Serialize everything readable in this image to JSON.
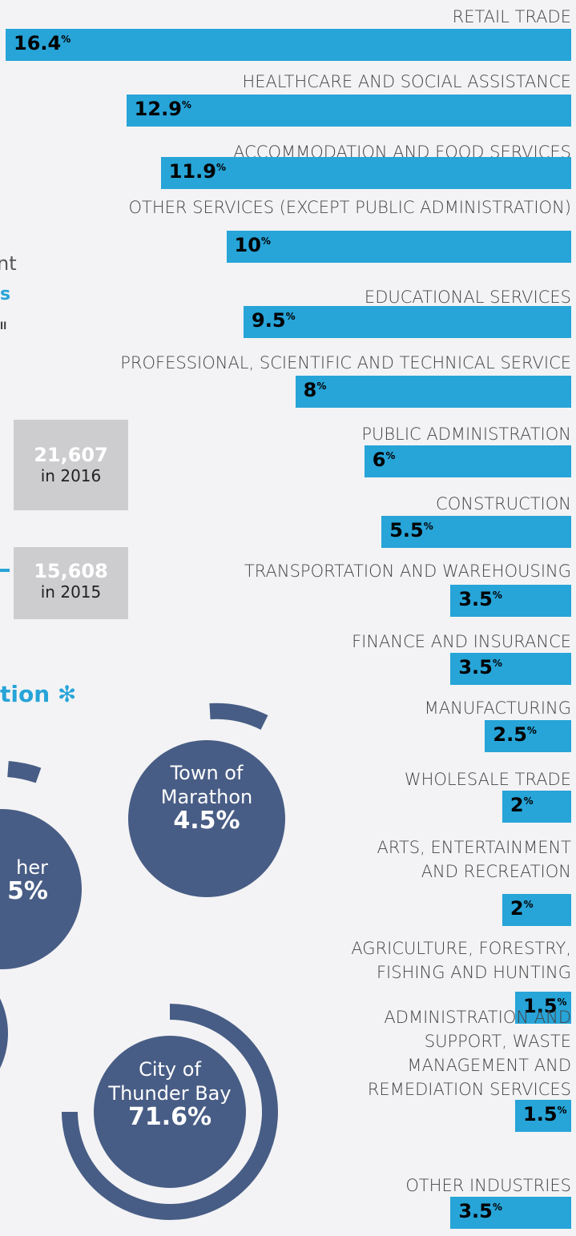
{
  "chart_data": {
    "type": "bar",
    "orientation": "horizontal",
    "color": "#27a4d8",
    "unit": "%",
    "categories": [
      "RETAIL TRADE",
      "HEALTHCARE AND SOCIAL ASSISTANCE",
      "ACCOMMODATION AND FOOD SERVICES",
      "OTHER SERVICES (EXCEPT PUBLIC ADMINISTRATION)",
      "EDUCATIONAL SERVICES",
      "PROFESSIONAL, SCIENTIFIC AND TECHNICAL SERVICE",
      "PUBLIC ADMINISTRATION",
      "CONSTRUCTION",
      "TRANSPORTATION AND WAREHOUSING",
      "FINANCE AND INSURANCE",
      "MANUFACTURING",
      "WHOLESALE TRADE",
      "ARTS, ENTERTAINMENT\nAND RECREATION",
      "AGRICULTURE, FORESTRY,\nFISHING AND HUNTING",
      "ADMINISTRATION AND\nSUPPORT, WASTE\nMANAGEMENT AND\nREMEDIATION SERVICES",
      "OTHER INDUSTRIES"
    ],
    "values": [
      16.4,
      12.9,
      11.9,
      10,
      9.5,
      8,
      6,
      5.5,
      3.5,
      3.5,
      2.5,
      2,
      2,
      1.5,
      1.5,
      3.5
    ]
  },
  "fragments": {
    "text_a": "nt",
    "text_b": "s",
    "text_c": "ll",
    "heading": "tion ✻"
  },
  "stats": [
    {
      "value": "21,607",
      "label": "in 2016"
    },
    {
      "value": "15,608",
      "label": "in 2015"
    }
  ],
  "circles": [
    {
      "name": "Town of\nMarathon",
      "value": "4.5%"
    },
    {
      "name": "her",
      "value": "5%"
    },
    {
      "name": "City of\nThunder Bay",
      "value": "71.6%"
    }
  ]
}
